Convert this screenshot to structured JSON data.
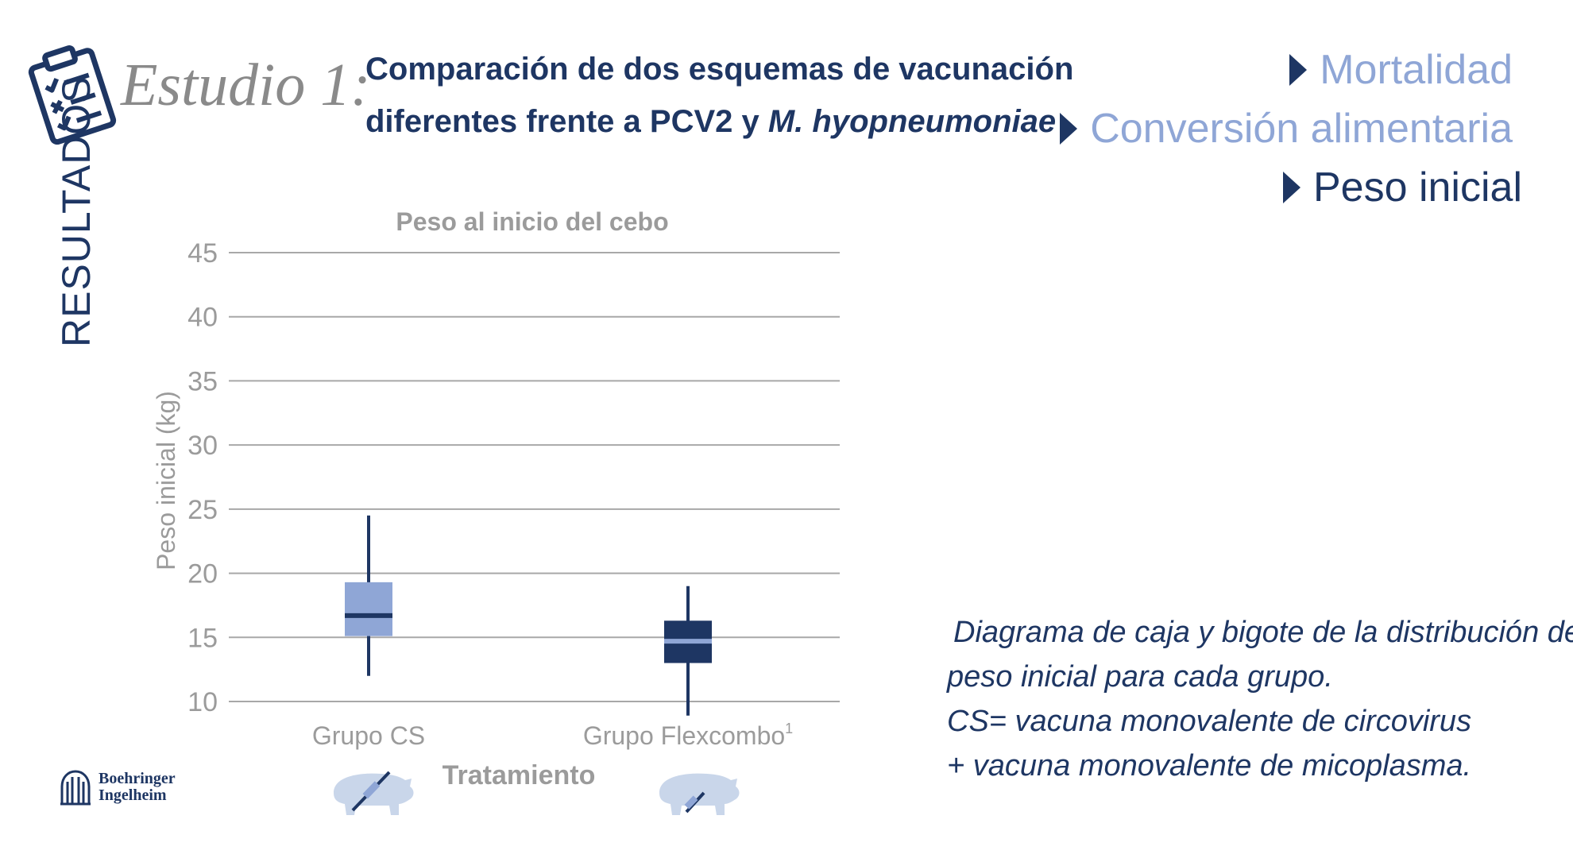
{
  "header": {
    "study_label": "Estudio 1:",
    "title_line1": "Comparación de dos esquemas de vacunación",
    "title_line2_plain": "diferentes frente a PCV2 y ",
    "title_line2_italic": "M. hyopneumoniae"
  },
  "side_label": "RESULTADOS",
  "nav": {
    "items": [
      {
        "label": "Mortalidad",
        "state": "muted"
      },
      {
        "label": "Conversión alimentaria",
        "state": "muted"
      },
      {
        "label": "Peso inicial",
        "state": "active"
      }
    ]
  },
  "chart_data": {
    "type": "boxplot",
    "title": "Peso al inicio del cebo",
    "xlabel": "Tratamiento",
    "ylabel": "Peso inicial (kg)",
    "ylim": [
      10,
      45
    ],
    "yticks": [
      10,
      15,
      20,
      25,
      30,
      35,
      40,
      45
    ],
    "grid": true,
    "categories": [
      "Grupo CS",
      "Grupo Flexcombo"
    ],
    "category_superscripts": [
      "",
      "1"
    ],
    "series": [
      {
        "name": "Grupo CS",
        "min": 12.0,
        "q1": 15.1,
        "median": 16.7,
        "q3": 19.3,
        "max": 24.5,
        "color": "#8fa6d6",
        "median_color": "#1e3663"
      },
      {
        "name": "Grupo Flexcombo",
        "min": 8.9,
        "q1": 13.0,
        "median": 14.7,
        "q3": 16.3,
        "max": 19.0,
        "color": "#1e3663",
        "median_color": "#8fa6d6"
      }
    ]
  },
  "caption": {
    "line1": "Diagrama de caja y bigote de la distribución del",
    "line2": "peso inicial para cada grupo.",
    "line3": "CS= vacuna monovalente de circovirus",
    "line4": "+ vacuna monovalente de micoplasma."
  },
  "logo": {
    "line1": "Boehringer",
    "line2": "Ingelheim"
  },
  "colors": {
    "navy": "#1e3663",
    "light_blue": "#8fa6d6",
    "gray": "#9b9b9b",
    "grid": "#a8a8a8",
    "pig": "#c9d6ea"
  }
}
